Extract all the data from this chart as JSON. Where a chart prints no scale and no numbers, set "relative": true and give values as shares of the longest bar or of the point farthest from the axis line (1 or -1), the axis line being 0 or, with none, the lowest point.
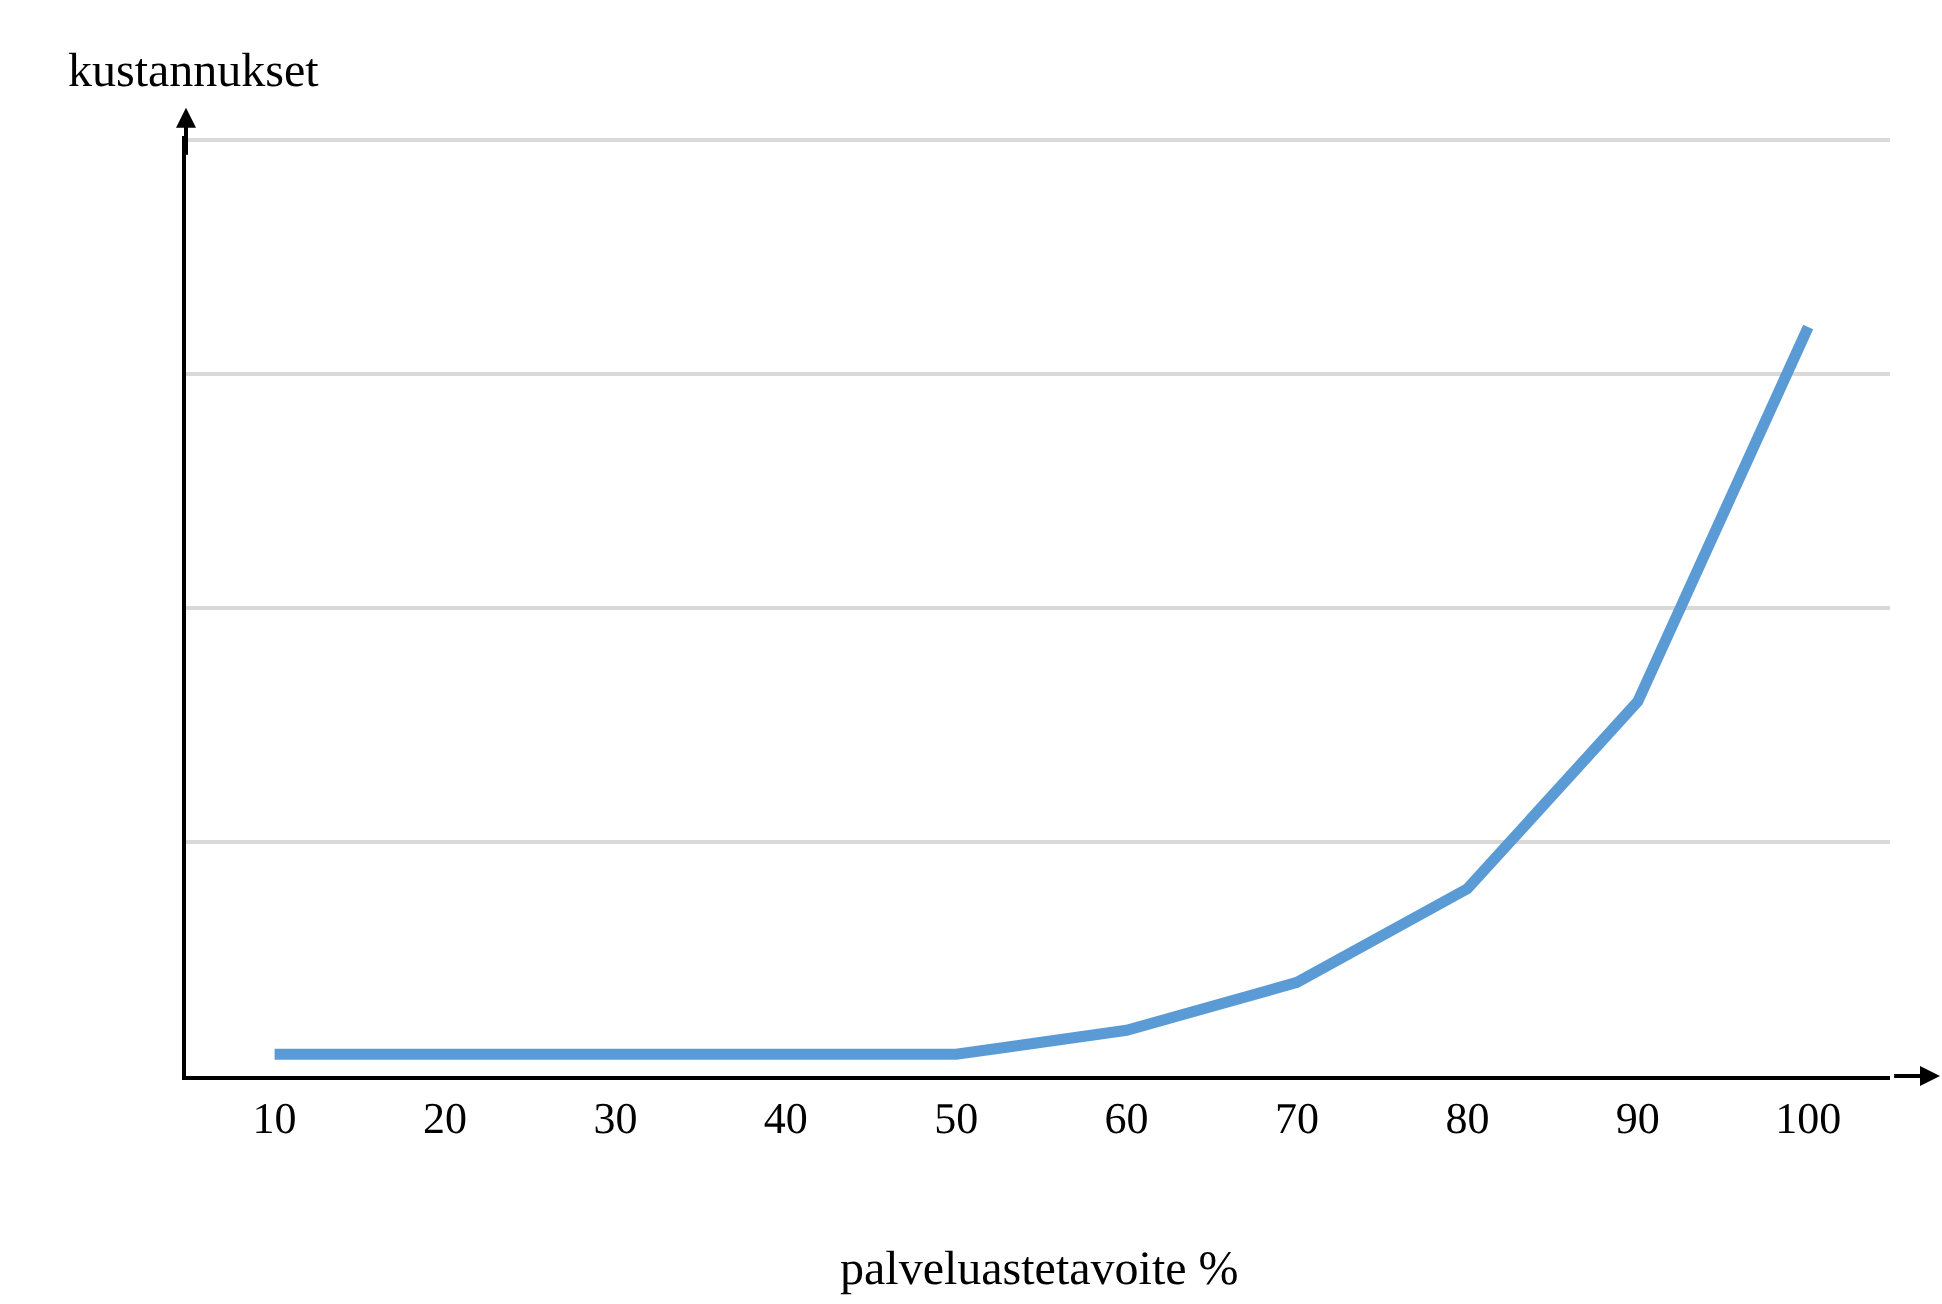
{
  "chart_data": {
    "type": "line",
    "relative": true,
    "xlabel": "palveluastetavoite %",
    "ylabel": "kustannukset",
    "categories": [
      "10",
      "20",
      "30",
      "40",
      "50",
      "60",
      "70",
      "80",
      "90",
      "100"
    ],
    "series": [
      {
        "color": "#5b9bd5",
        "values": [
          0.029,
          0.029,
          0.029,
          0.029,
          0.029,
          0.061,
          0.125,
          0.25,
          0.5,
          1
        ]
      }
    ],
    "grid": "y",
    "marker": "none",
    "line_style": "solid"
  }
}
